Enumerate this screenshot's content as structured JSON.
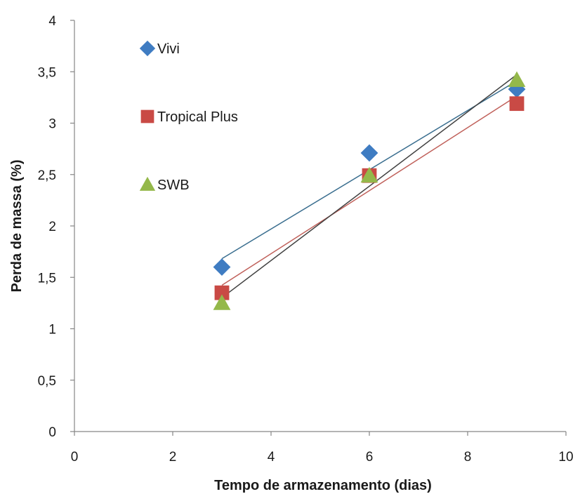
{
  "chart_data": {
    "type": "scatter",
    "xlabel": "Tempo de armazenamento (dias)",
    "ylabel": "Perda de massa (%)",
    "xlim": [
      0,
      10
    ],
    "ylim": [
      0,
      4
    ],
    "x_ticks": [
      "0",
      "2",
      "4",
      "6",
      "8",
      "10"
    ],
    "y_ticks": [
      "0",
      "0,5",
      "1",
      "1,5",
      "2",
      "2,5",
      "3",
      "3,5",
      "4"
    ],
    "grid": false,
    "legend_position": "inside-top-left",
    "trendlines": "linear",
    "series": [
      {
        "name": "Vivi",
        "marker": "diamond",
        "color": "#3f7cc2",
        "trend_color": "#3a6e8f",
        "x": [
          3,
          6,
          9
        ],
        "y": [
          1.6,
          2.71,
          3.33
        ]
      },
      {
        "name": "Tropical Plus",
        "marker": "square",
        "color": "#c94a45",
        "trend_color": "#c0605a",
        "x": [
          3,
          6,
          9
        ],
        "y": [
          1.35,
          2.49,
          3.19
        ]
      },
      {
        "name": "SWB",
        "marker": "triangle",
        "color": "#94b84a",
        "trend_color": "#404040",
        "x": [
          3,
          6,
          9
        ],
        "y": [
          1.25,
          2.49,
          3.42
        ]
      }
    ]
  }
}
